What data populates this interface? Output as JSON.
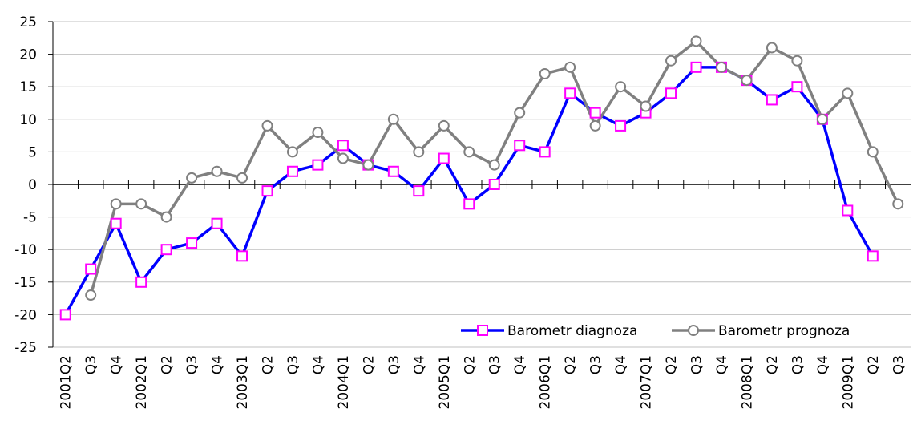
{
  "chart_data": {
    "type": "line",
    "categories": [
      "2001Q2",
      "Q3",
      "Q4",
      "2002Q1",
      "Q2",
      "Q3",
      "Q4",
      "2003Q1",
      "Q2",
      "Q3",
      "Q4",
      "2004Q1",
      "Q2",
      "Q3",
      "Q4",
      "2005Q1",
      "Q2",
      "Q3",
      "Q4",
      "2006Q1",
      "Q2",
      "Q3",
      "Q4",
      "2007Q1",
      "Q2",
      "Q3",
      "Q4",
      "2008Q1",
      "Q2",
      "Q3",
      "Q4",
      "2009Q1",
      "Q2",
      "Q3"
    ],
    "series": [
      {
        "name": "Barometr diagnoza",
        "color": "#0000ff",
        "marker": "square",
        "marker_color": "#ff00ff",
        "values": [
          -20,
          -13,
          -6,
          -15,
          -10,
          -9,
          -6,
          -11,
          -1,
          2,
          3,
          6,
          3,
          2,
          -1,
          4,
          -3,
          0,
          6,
          5,
          14,
          11,
          9,
          11,
          14,
          18,
          18,
          16,
          13,
          15,
          10,
          -4,
          -11,
          null
        ]
      },
      {
        "name": "Barometr prognoza",
        "color": "#808080",
        "marker": "circle",
        "marker_color": "#808080",
        "values": [
          null,
          -17,
          -3,
          -3,
          -5,
          1,
          2,
          1,
          9,
          5,
          8,
          4,
          3,
          10,
          5,
          9,
          5,
          3,
          11,
          17,
          18,
          9,
          15,
          12,
          19,
          22,
          18,
          16,
          21,
          19,
          10,
          14,
          5,
          -3
        ]
      }
    ],
    "ylim": [
      -25,
      25
    ],
    "yticks": [
      -25,
      -20,
      -15,
      -10,
      -5,
      0,
      5,
      10,
      15,
      20,
      25
    ],
    "grid": true,
    "legend": "lower right"
  }
}
